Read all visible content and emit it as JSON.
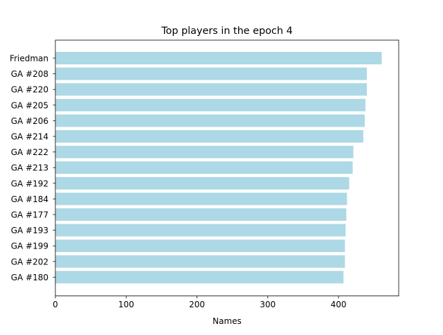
{
  "chart_data": {
    "type": "bar",
    "orientation": "horizontal",
    "title": "Top players in the epoch 4",
    "xlabel": "Names",
    "ylabel": "",
    "xlim": [
      0,
      485
    ],
    "xticks": [
      0,
      100,
      200,
      300,
      400
    ],
    "grid": false,
    "legend": "none",
    "bar_color": "#add8e6",
    "categories": [
      "Friedman",
      "GA #208",
      "GA #220",
      "GA #205",
      "GA #206",
      "GA #214",
      "GA #222",
      "GA #213",
      "GA #192",
      "GA #184",
      "GA #177",
      "GA #193",
      "GA #199",
      "GA #202",
      "GA #180"
    ],
    "values": [
      461,
      440,
      440,
      438,
      437,
      435,
      421,
      420,
      415,
      412,
      411,
      410,
      409,
      409,
      407
    ]
  }
}
